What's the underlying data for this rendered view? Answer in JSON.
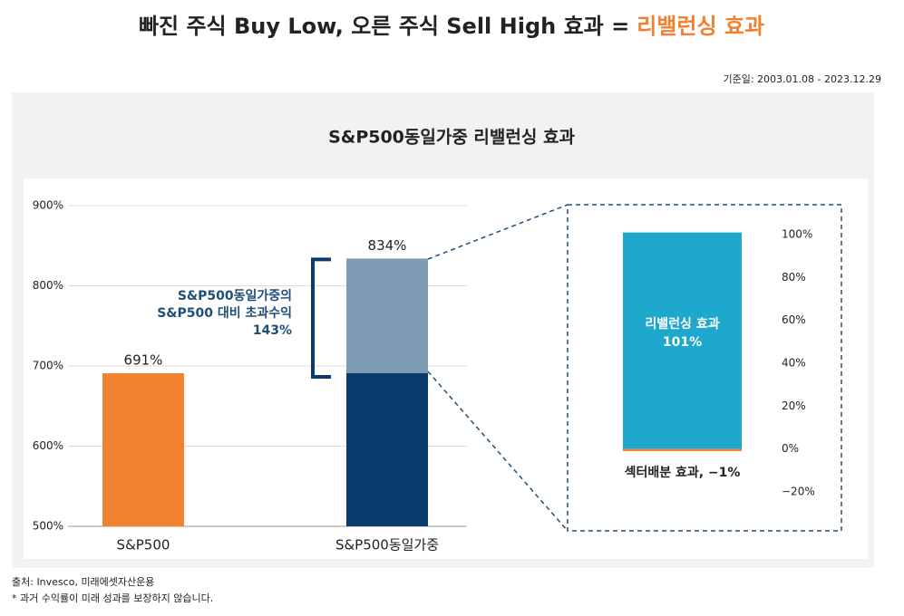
{
  "header": {
    "title": "빠진 주식 Buy Low, 오른 주식 Sell High 효과 =",
    "title_highlight": "리밸런싱 효과",
    "date_note": "기준일: 2003.01.08 - 2023.12.29"
  },
  "chart_data": [
    {
      "type": "bar",
      "title": "S&P500동일가중 리밸런싱 효과",
      "categories": [
        "S&P500",
        "S&P500동일가중"
      ],
      "values": [
        691,
        834
      ],
      "value_labels": [
        "691%",
        "834%"
      ],
      "colors": [
        "#f28130",
        "#0b3b6c"
      ],
      "excess": {
        "lines": [
          "S&P500동일가중의",
          "S&P500 대비 초과수익",
          "143%"
        ],
        "value": 143,
        "color": "#7f9cb6"
      },
      "ylim": [
        500,
        900
      ],
      "yticks": [
        {
          "value": 500,
          "label": "500%"
        },
        {
          "value": 600,
          "label": "600%"
        },
        {
          "value": 700,
          "label": "700%"
        },
        {
          "value": 800,
          "label": "800%"
        },
        {
          "value": 900,
          "label": "900%"
        }
      ],
      "grid": true
    },
    {
      "type": "stacked-bar",
      "series": [
        {
          "name": "리밸런싱 효과",
          "values": [
            101
          ],
          "value_labels": [
            "101%"
          ],
          "color": "#1ea8cd"
        },
        {
          "label": "섹터배분 효과, −1%",
          "values": [
            -1
          ],
          "color": "#f28130"
        }
      ],
      "ylim": [
        -20,
        100
      ],
      "yticks": [
        {
          "value": -20,
          "label": "−20%"
        },
        {
          "value": 0,
          "label": "0%"
        },
        {
          "value": 20,
          "label": "20%"
        },
        {
          "value": 40,
          "label": "40%"
        },
        {
          "value": 60,
          "label": "60%"
        },
        {
          "value": 80,
          "label": "80%"
        },
        {
          "value": 100,
          "label": "100%"
        }
      ],
      "grid": false
    }
  ],
  "footer": {
    "source": "출처: Invesco, 미래에셋자산운용",
    "disclaimer": "* 과거 수익률이 미래 성과를 보장하지 않습니다."
  }
}
